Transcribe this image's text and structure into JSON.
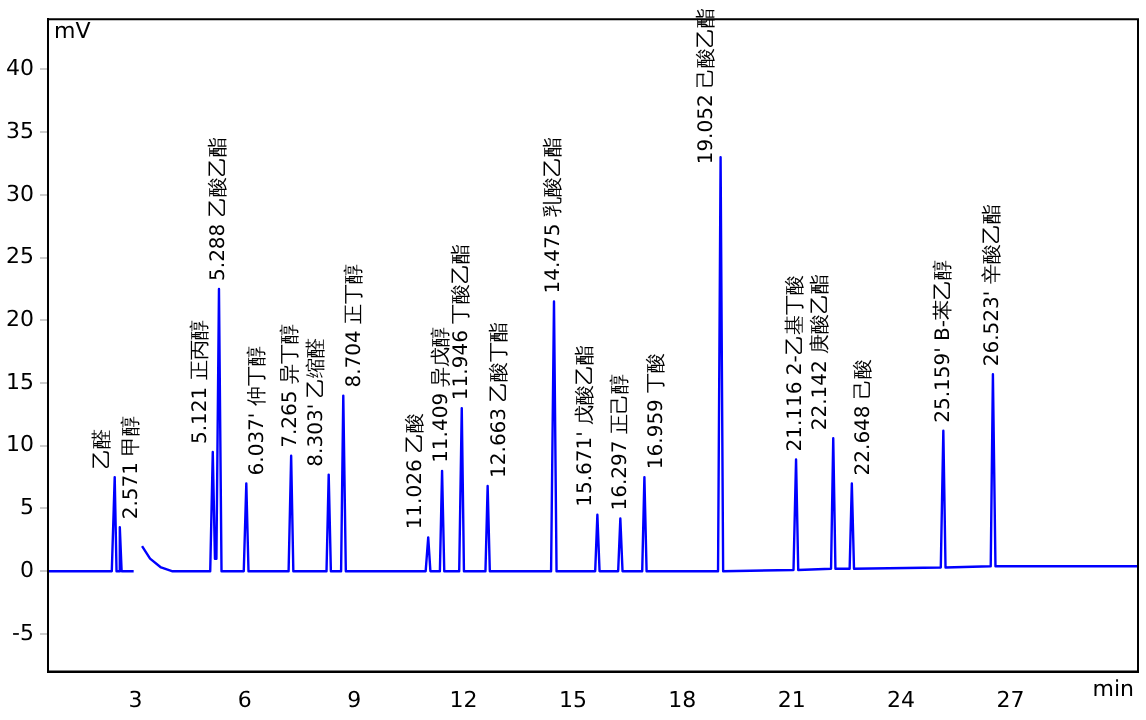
{
  "chart_data": {
    "type": "line",
    "xlabel": "min",
    "ylabel": "mV",
    "x": [
      0.6,
      2.35,
      2.43,
      2.48,
      2.53,
      2.57,
      2.62,
      2.95,
      3.0,
      3.12,
      3.18,
      3.4,
      3.7,
      4.0,
      5.05,
      5.12,
      5.18,
      5.22,
      5.29,
      5.36,
      5.97,
      6.04,
      6.1,
      7.2,
      7.27,
      7.33,
      8.24,
      8.3,
      8.36,
      8.64,
      8.7,
      8.77,
      10.96,
      11.03,
      11.09,
      11.35,
      11.41,
      11.47,
      11.88,
      11.95,
      12.01,
      12.6,
      12.66,
      12.72,
      14.4,
      14.48,
      14.55,
      15.61,
      15.67,
      15.73,
      16.24,
      16.3,
      16.36,
      16.9,
      16.96,
      17.02,
      18.98,
      19.05,
      19.12,
      21.05,
      21.12,
      21.18,
      22.08,
      22.14,
      22.2,
      22.59,
      22.65,
      22.71,
      25.09,
      25.16,
      25.22,
      26.46,
      26.52,
      26.59,
      30.5
    ],
    "series": [
      {
        "color": "#0000ff",
        "values": [
          0,
          0,
          7.5,
          0,
          0,
          3.5,
          0,
          0,
          null,
          null,
          2,
          1,
          0.3,
          0,
          0,
          9.5,
          1,
          1,
          22.5,
          0,
          0,
          7,
          0,
          0,
          9.2,
          0,
          0,
          7.7,
          0,
          0,
          14,
          0,
          0,
          2.7,
          0,
          0,
          8,
          0,
          0,
          13,
          0,
          0,
          6.8,
          0,
          0,
          21.5,
          0,
          0,
          4.5,
          0,
          0,
          4.2,
          0,
          0,
          7.5,
          0,
          0,
          33,
          0,
          0.1,
          8.9,
          0.1,
          0.2,
          10.6,
          0.2,
          0.2,
          7,
          0.2,
          0.3,
          11.2,
          0.3,
          0.4,
          15.7,
          0.4,
          0.4
        ]
      }
    ],
    "xlim": [
      0.6,
      30.5
    ],
    "ylim": [
      -8,
      44
    ],
    "xticks": [
      3,
      6,
      9,
      12,
      15,
      18,
      21,
      24,
      27
    ],
    "yticks": [
      -5,
      0,
      5,
      10,
      15,
      20,
      25,
      30,
      35,
      40
    ],
    "grid": false,
    "legend": false,
    "marker": "none",
    "line_style": "solid",
    "annotations": [
      {
        "text": "乙醛",
        "x": 2.43,
        "y": 7.5
      },
      {
        "text": "2.571 甲醇",
        "x": 2.57,
        "y": 3.5
      },
      {
        "text": "5.121 正丙醇",
        "x": 5.12,
        "y": 9.5
      },
      {
        "text": "5.288 乙酸乙酯",
        "x": 5.29,
        "y": 22.5
      },
      {
        "text": "6.037' 仲丁醇",
        "x": 6.04,
        "y": 7
      },
      {
        "text": "7.265 异丁醇",
        "x": 7.27,
        "y": 9.2
      },
      {
        "text": "8.303' 乙缩醛",
        "x": 8.3,
        "y": 7.7
      },
      {
        "text": "8.704 正丁醇",
        "x": 8.7,
        "y": 14
      },
      {
        "text": "11.026 乙酸",
        "x": 11.03,
        "y": 2.7
      },
      {
        "text": "11.409 异戊醇",
        "x": 11.41,
        "y": 8
      },
      {
        "text": "11.946 丁酸乙酯",
        "x": 11.95,
        "y": 13
      },
      {
        "text": "12.663 乙酸丁酯",
        "x": 12.66,
        "y": 6.8
      },
      {
        "text": "14.475 乳酸乙酯",
        "x": 14.48,
        "y": 21.5
      },
      {
        "text": "15.671' 戊酸乙酯",
        "x": 15.67,
        "y": 4.5
      },
      {
        "text": "16.297 正己醇",
        "x": 16.3,
        "y": 4.2
      },
      {
        "text": "16.959 丁酸",
        "x": 16.96,
        "y": 7.5
      },
      {
        "text": "19.052 己酸乙酯",
        "x": 19.05,
        "y": 33
      },
      {
        "text": "21.116 2-乙基丁酸",
        "x": 21.12,
        "y": 8.9
      },
      {
        "text": "22.142 庚酸乙酯",
        "x": 22.14,
        "y": 10.6
      },
      {
        "text": "22.648 己酸",
        "x": 22.65,
        "y": 7
      },
      {
        "text": "25.159' B-苯乙醇",
        "x": 25.16,
        "y": 11.2
      },
      {
        "text": "26.523' 辛酸乙酯",
        "x": 26.52,
        "y": 15.7
      }
    ]
  }
}
